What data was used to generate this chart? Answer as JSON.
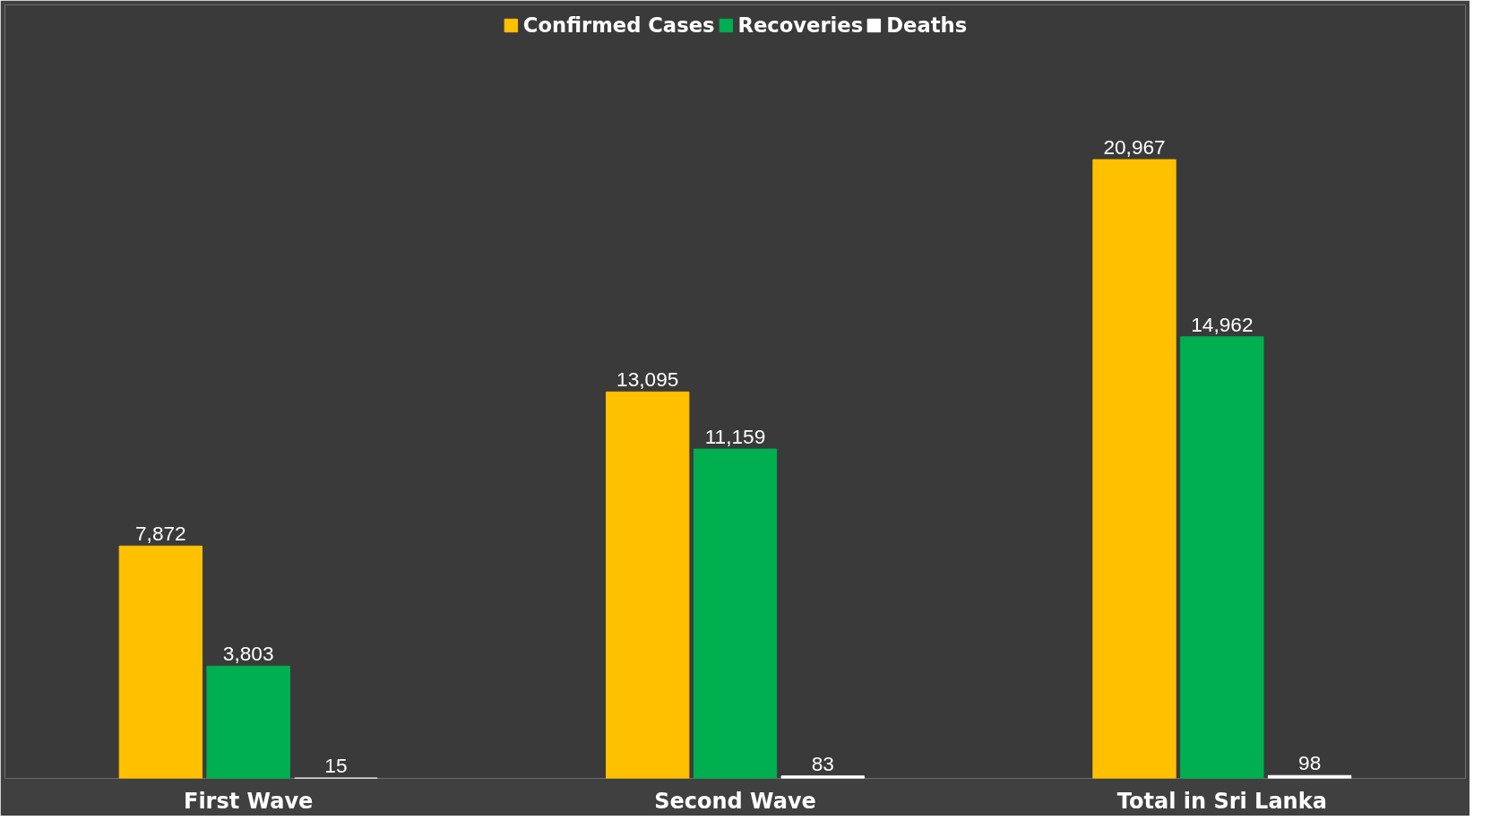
{
  "chart_data": {
    "type": "bar",
    "categories": [
      "First Wave",
      "Second Wave",
      "Total in Sri Lanka"
    ],
    "series": [
      {
        "name": "Confirmed Cases",
        "color": "#ffc000",
        "values": [
          7872,
          13095,
          20967
        ],
        "value_labels": [
          "7,872",
          "13,095",
          "20,967"
        ]
      },
      {
        "name": "Recoveries",
        "color": "#00b050",
        "values": [
          3803,
          11159,
          14962
        ],
        "value_labels": [
          "3,803",
          "11,159",
          "14,962"
        ]
      },
      {
        "name": "Deaths",
        "color": "#ffffff",
        "values": [
          15,
          83,
          98
        ],
        "value_labels": [
          "15",
          "83",
          "98"
        ]
      }
    ],
    "legend": "top",
    "grid": false
  }
}
